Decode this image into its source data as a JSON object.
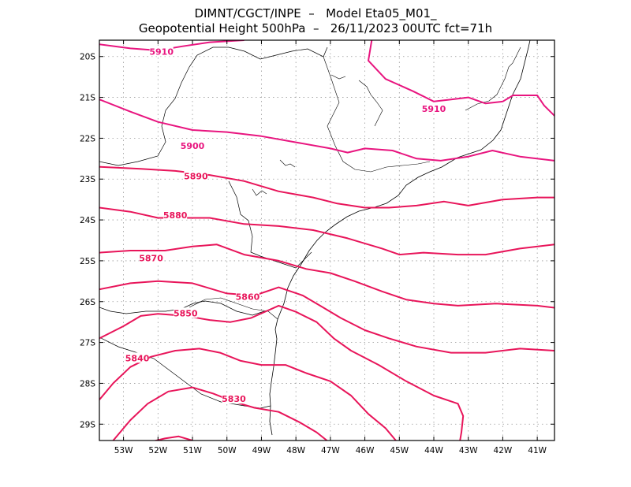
{
  "title_line1": "DIMNT/CGCT/INPE  –   Model Eta05_M01_",
  "title_line2": "Geopotential Height 500hPa  –   26/11/2023 00UTC fct=71h",
  "colors": {
    "contour": "#e8155a",
    "contour_high": "#e8157f",
    "grid": "#999999",
    "coast": "#000000"
  },
  "map": {
    "lon_range": [
      -53.7,
      -40.5
    ],
    "lat_range": [
      -29.4,
      -19.6
    ],
    "lon_ticks": [
      {
        "value": -53,
        "label": "53W"
      },
      {
        "value": -52,
        "label": "52W"
      },
      {
        "value": -51,
        "label": "51W"
      },
      {
        "value": -50,
        "label": "50W"
      },
      {
        "value": -49,
        "label": "49W"
      },
      {
        "value": -48,
        "label": "48W"
      },
      {
        "value": -47,
        "label": "47W"
      },
      {
        "value": -46,
        "label": "46W"
      },
      {
        "value": -45,
        "label": "45W"
      },
      {
        "value": -44,
        "label": "44W"
      },
      {
        "value": -43,
        "label": "43W"
      },
      {
        "value": -42,
        "label": "42W"
      },
      {
        "value": -41,
        "label": "41W"
      }
    ],
    "lat_ticks": [
      {
        "value": -20,
        "label": "20S"
      },
      {
        "value": -21,
        "label": "21S"
      },
      {
        "value": -22,
        "label": "22S"
      },
      {
        "value": -23,
        "label": "23S"
      },
      {
        "value": -24,
        "label": "24S"
      },
      {
        "value": -25,
        "label": "25S"
      },
      {
        "value": -26,
        "label": "26S"
      },
      {
        "value": -27,
        "label": "27S"
      },
      {
        "value": -28,
        "label": "28S"
      },
      {
        "value": -29,
        "label": "29S"
      }
    ],
    "grid": true
  },
  "contours": [
    {
      "label": "5910",
      "label_at": [
        -51.9,
        -19.9
      ],
      "points": [
        [
          -53.7,
          -19.7
        ],
        [
          -52.8,
          -19.8
        ],
        [
          -52.0,
          -19.85
        ],
        [
          -51.3,
          -19.75
        ],
        [
          -50.5,
          -19.65
        ],
        [
          -49.5,
          -19.6
        ]
      ]
    },
    {
      "label": "5910",
      "label_at": [
        -44.0,
        -21.3
      ],
      "points": [
        [
          -45.8,
          -19.6
        ],
        [
          -45.9,
          -20.1
        ],
        [
          -45.4,
          -20.55
        ],
        [
          -44.6,
          -20.85
        ],
        [
          -44.0,
          -21.1
        ],
        [
          -43.5,
          -21.05
        ],
        [
          -43.0,
          -21.0
        ],
        [
          -42.5,
          -21.15
        ],
        [
          -42.0,
          -21.1
        ],
        [
          -41.7,
          -20.95
        ],
        [
          -41.0,
          -20.95
        ],
        [
          -40.8,
          -21.2
        ],
        [
          -40.5,
          -21.45
        ]
      ]
    },
    {
      "label": "5900",
      "label_at": [
        -51.0,
        -22.2
      ],
      "points": [
        [
          -53.7,
          -21.05
        ],
        [
          -52.8,
          -21.35
        ],
        [
          -52.0,
          -21.6
        ],
        [
          -51.0,
          -21.8
        ],
        [
          -50.0,
          -21.85
        ],
        [
          -49.0,
          -21.95
        ],
        [
          -48.0,
          -22.1
        ],
        [
          -47.0,
          -22.25
        ],
        [
          -46.5,
          -22.35
        ],
        [
          -46.0,
          -22.25
        ],
        [
          -45.2,
          -22.3
        ],
        [
          -44.5,
          -22.5
        ],
        [
          -43.8,
          -22.55
        ],
        [
          -43.0,
          -22.45
        ],
        [
          -42.3,
          -22.3
        ],
        [
          -41.5,
          -22.45
        ],
        [
          -40.5,
          -22.55
        ]
      ]
    },
    {
      "label": "5890",
      "label_at": [
        -50.9,
        -22.95
      ],
      "points": [
        [
          -53.7,
          -22.7
        ],
        [
          -52.5,
          -22.75
        ],
        [
          -51.5,
          -22.8
        ],
        [
          -50.5,
          -22.9
        ],
        [
          -49.5,
          -23.05
        ],
        [
          -48.5,
          -23.3
        ],
        [
          -47.5,
          -23.45
        ],
        [
          -46.8,
          -23.6
        ],
        [
          -46.0,
          -23.7
        ],
        [
          -45.3,
          -23.7
        ],
        [
          -44.5,
          -23.65
        ],
        [
          -43.7,
          -23.55
        ],
        [
          -43.0,
          -23.65
        ],
        [
          -42.0,
          -23.5
        ],
        [
          -41.0,
          -23.45
        ],
        [
          -40.5,
          -23.45
        ]
      ]
    },
    {
      "label": "5880",
      "label_at": [
        -51.5,
        -23.9
      ],
      "points": [
        [
          -53.7,
          -23.7
        ],
        [
          -52.8,
          -23.8
        ],
        [
          -52.0,
          -23.95
        ],
        [
          -51.2,
          -23.95
        ],
        [
          -50.5,
          -23.95
        ],
        [
          -49.5,
          -24.1
        ],
        [
          -48.5,
          -24.15
        ],
        [
          -47.5,
          -24.25
        ],
        [
          -46.5,
          -24.45
        ],
        [
          -45.5,
          -24.7
        ],
        [
          -45.0,
          -24.85
        ],
        [
          -44.3,
          -24.8
        ],
        [
          -43.3,
          -24.85
        ],
        [
          -42.5,
          -24.85
        ],
        [
          -41.5,
          -24.7
        ],
        [
          -40.5,
          -24.6
        ]
      ]
    },
    {
      "label": "5870",
      "label_at": [
        -52.2,
        -24.95
      ],
      "points": [
        [
          -53.7,
          -24.8
        ],
        [
          -52.8,
          -24.75
        ],
        [
          -51.8,
          -24.75
        ],
        [
          -51.0,
          -24.65
        ],
        [
          -50.3,
          -24.6
        ],
        [
          -49.5,
          -24.85
        ],
        [
          -48.5,
          -25.0
        ],
        [
          -47.7,
          -25.2
        ],
        [
          -47.0,
          -25.3
        ],
        [
          -46.3,
          -25.5
        ],
        [
          -45.5,
          -25.75
        ],
        [
          -44.8,
          -25.95
        ],
        [
          -44.0,
          -26.05
        ],
        [
          -43.3,
          -26.1
        ],
        [
          -42.2,
          -26.05
        ],
        [
          -41.0,
          -26.1
        ],
        [
          -40.5,
          -26.15
        ]
      ]
    },
    {
      "label": "5860",
      "label_at": [
        -49.4,
        -25.9
      ],
      "points": [
        [
          -53.7,
          -25.7
        ],
        [
          -52.8,
          -25.55
        ],
        [
          -52.0,
          -25.5
        ],
        [
          -51.0,
          -25.55
        ],
        [
          -50.0,
          -25.8
        ],
        [
          -49.2,
          -25.85
        ],
        [
          -48.5,
          -25.65
        ],
        [
          -47.8,
          -25.85
        ],
        [
          -47.3,
          -26.1
        ],
        [
          -46.7,
          -26.4
        ],
        [
          -46.0,
          -26.7
        ],
        [
          -45.3,
          -26.9
        ],
        [
          -44.5,
          -27.1
        ],
        [
          -43.5,
          -27.25
        ],
        [
          -42.5,
          -27.25
        ],
        [
          -41.5,
          -27.15
        ],
        [
          -40.5,
          -27.2
        ]
      ]
    },
    {
      "label": "5850",
      "label_at": [
        -51.2,
        -26.3
      ],
      "points": [
        [
          -53.7,
          -26.9
        ],
        [
          -53.0,
          -26.6
        ],
        [
          -52.5,
          -26.35
        ],
        [
          -52.0,
          -26.3
        ],
        [
          -51.2,
          -26.35
        ],
        [
          -50.5,
          -26.45
        ],
        [
          -49.9,
          -26.5
        ],
        [
          -49.3,
          -26.4
        ],
        [
          -48.5,
          -26.1
        ],
        [
          -48.0,
          -26.25
        ],
        [
          -47.4,
          -26.5
        ],
        [
          -46.9,
          -26.9
        ],
        [
          -46.4,
          -27.2
        ],
        [
          -45.6,
          -27.55
        ],
        [
          -44.8,
          -27.95
        ],
        [
          -44.0,
          -28.3
        ],
        [
          -43.3,
          -28.5
        ],
        [
          -43.15,
          -28.8
        ],
        [
          -43.2,
          -29.2
        ],
        [
          -43.25,
          -29.45
        ]
      ]
    },
    {
      "label": "5840",
      "label_at": [
        -52.6,
        -27.4
      ],
      "points": [
        [
          -53.7,
          -28.4
        ],
        [
          -53.3,
          -28.0
        ],
        [
          -52.8,
          -27.6
        ],
        [
          -52.2,
          -27.35
        ],
        [
          -51.5,
          -27.2
        ],
        [
          -50.8,
          -27.15
        ],
        [
          -50.2,
          -27.25
        ],
        [
          -49.6,
          -27.45
        ],
        [
          -49.0,
          -27.55
        ],
        [
          -48.3,
          -27.55
        ],
        [
          -47.7,
          -27.75
        ],
        [
          -47.0,
          -27.95
        ],
        [
          -46.4,
          -28.3
        ],
        [
          -45.9,
          -28.75
        ],
        [
          -45.4,
          -29.1
        ],
        [
          -45.1,
          -29.4
        ]
      ]
    },
    {
      "label": "5830",
      "label_at": [
        -49.8,
        -28.4
      ],
      "points": [
        [
          -53.3,
          -29.4
        ],
        [
          -52.8,
          -28.9
        ],
        [
          -52.3,
          -28.5
        ],
        [
          -51.7,
          -28.2
        ],
        [
          -51.0,
          -28.1
        ],
        [
          -50.4,
          -28.25
        ],
        [
          -49.8,
          -28.45
        ],
        [
          -49.2,
          -28.6
        ],
        [
          -48.5,
          -28.7
        ],
        [
          -47.9,
          -28.95
        ],
        [
          -47.4,
          -29.2
        ],
        [
          -47.1,
          -29.4
        ]
      ]
    },
    {
      "label": "",
      "label_at": [
        0,
        0
      ],
      "points": [
        [
          -52.3,
          -29.45
        ],
        [
          -51.8,
          -29.35
        ],
        [
          -51.4,
          -29.3
        ],
        [
          -51.0,
          -29.4
        ]
      ]
    }
  ]
}
